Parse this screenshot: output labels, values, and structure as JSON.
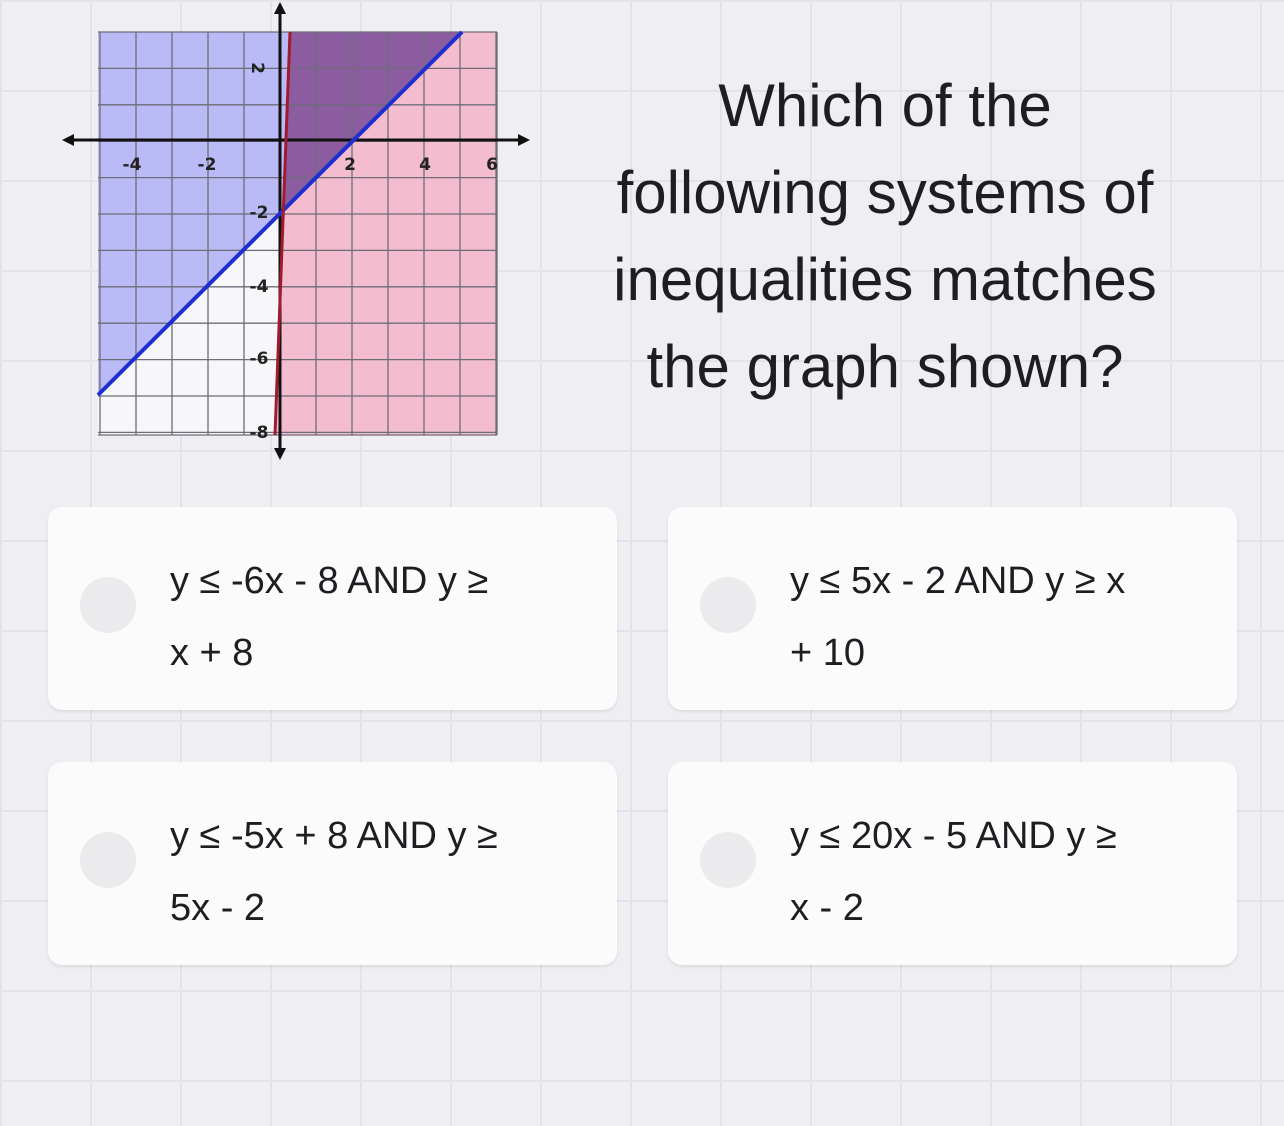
{
  "graph": {
    "x_labels": [
      "-4",
      "-2",
      "2",
      "4",
      "6"
    ],
    "y_labels": [
      "2",
      "-2",
      "-4",
      "-6",
      "-8"
    ]
  },
  "question": {
    "lines": [
      "Which of the",
      "following systems of",
      "inequalities matches",
      "the graph shown?"
    ]
  },
  "options": [
    {
      "lines": [
        "y ≤ -6x - 8 AND y ≥",
        "x + 8"
      ]
    },
    {
      "lines": [
        "y ≤ 5x - 2 AND y ≥ x",
        "+ 10"
      ]
    },
    {
      "lines": [
        "y ≤ -5x + 8 AND y ≥",
        "5x - 2"
      ]
    },
    {
      "lines": [
        "y ≤ 20x - 5 AND y ≥",
        "x - 2"
      ]
    }
  ]
}
